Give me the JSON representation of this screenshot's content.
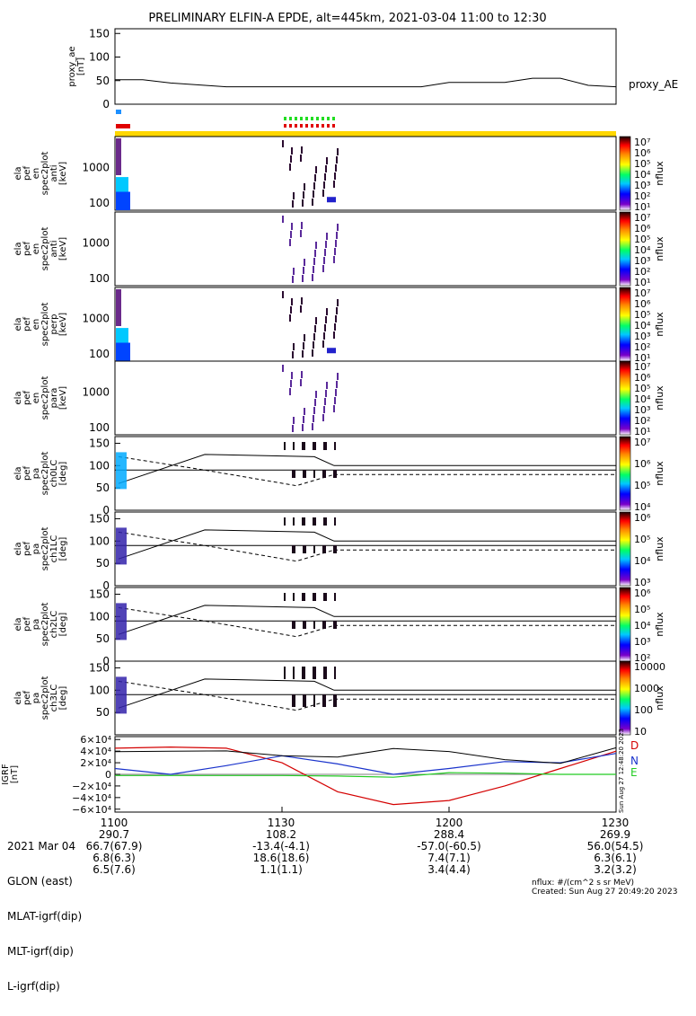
{
  "title": "PRELIMINARY ELFIN-A EPDE, alt=445km, 2021-03-04 11:00 to 12:30",
  "colors": {
    "frame": "#000000",
    "yellow_bar": "#ffd700",
    "blue_flag": "#1e90ff",
    "red_flag": "#e00000",
    "green_flag": "#22dd22",
    "igrf_D": "#d40000",
    "igrf_N": "#1a33cc",
    "igrf_E": "#22cc22"
  },
  "ae_panel": {
    "ylabel": "proxy_ae\n[nT]",
    "ticks": [
      "150",
      "100",
      "50",
      "0"
    ],
    "series_label": "proxy_AE"
  },
  "spec_panels": [
    {
      "ylabel": "ela\npef\nen\nspec2plot\nanti\n[keV]",
      "ticks": [
        "1000",
        "100"
      ],
      "cbar_label": "nflux",
      "cbar_ticks": [
        "10⁷",
        "10⁶",
        "10⁵",
        "10⁴",
        "10³",
        "10²",
        "10¹"
      ]
    },
    {
      "ylabel": "ela\npef\nen\nspec2plot\nanti\n[keV]",
      "ticks": [
        "1000",
        "100"
      ],
      "cbar_label": "nflux",
      "cbar_ticks": [
        "10⁷",
        "10⁶",
        "10⁵",
        "10⁴",
        "10³",
        "10²",
        "10¹"
      ]
    },
    {
      "ylabel": "ela\npef\nen\nspec2plot\nperp\n[keV]",
      "ticks": [
        "1000",
        "100"
      ],
      "cbar_label": "nflux",
      "cbar_ticks": [
        "10⁷",
        "10⁶",
        "10⁵",
        "10⁴",
        "10³",
        "10²",
        "10¹"
      ]
    },
    {
      "ylabel": "ela\npef\nen\nspec2plot\npara\n[keV]",
      "ticks": [
        "1000",
        "100"
      ],
      "cbar_label": "nflux",
      "cbar_ticks": [
        "10⁷",
        "10⁶",
        "10⁵",
        "10⁴",
        "10³",
        "10²",
        "10¹"
      ]
    }
  ],
  "pa_panels": [
    {
      "ylabel": "ela\npef\npa\nspec2plot\nch0LC\n[deg]",
      "ticks": [
        "150",
        "100",
        "50",
        "0"
      ],
      "cbar_label": "nflux",
      "cbar_ticks": [
        "10⁷",
        "10⁶",
        "10⁵",
        "10⁴"
      ]
    },
    {
      "ylabel": "ela\npef\npa\nspec2plot\nch1LC\n[deg]",
      "ticks": [
        "150",
        "100",
        "50",
        "0"
      ],
      "cbar_label": "nflux",
      "cbar_ticks": [
        "10⁶",
        "10⁵",
        "10⁴",
        "10³"
      ]
    },
    {
      "ylabel": "ela\npef\npa\nspec2plot\nch2LC\n[deg]",
      "ticks": [
        "150",
        "100",
        "50",
        "0"
      ],
      "cbar_label": "nflux",
      "cbar_ticks": [
        "10⁶",
        "10⁵",
        "10⁴",
        "10³",
        "10²"
      ]
    },
    {
      "ylabel": "ela\npef\npa\nspec2plot\nch3LC\n[deg]",
      "ticks": [
        "150",
        "100",
        "50"
      ],
      "cbar_label": "nflux",
      "cbar_ticks": [
        "10000",
        "1000",
        "100",
        "10"
      ]
    }
  ],
  "igrf_panel": {
    "ylabel": "IGRF\n[nT]",
    "ticks": [
      "6×10⁴",
      "4×10⁴",
      "2×10⁴",
      "0",
      "−2×10⁴",
      "−4×10⁴",
      "−6×10⁴"
    ],
    "labels": [
      "D",
      "N",
      "E"
    ],
    "side_text": "Sun Aug 27 12:48:20 2023"
  },
  "chart_data": {
    "type": "line",
    "x_ticks": [
      "1100",
      "1130",
      "1200",
      "1230"
    ],
    "proxy_ae": {
      "x": [
        0,
        5,
        10,
        20,
        30,
        40,
        50,
        55,
        60,
        70,
        75,
        80,
        85,
        90
      ],
      "y": [
        52,
        52,
        45,
        37,
        37,
        37,
        37,
        37,
        46,
        46,
        55,
        55,
        40,
        37
      ]
    },
    "igrf": {
      "D": {
        "x": [
          0,
          10,
          20,
          30,
          40,
          50,
          60,
          70,
          80,
          90
        ],
        "y": [
          45000,
          47000,
          45000,
          20000,
          -30000,
          -52000,
          -45000,
          -20000,
          10000,
          40000
        ]
      },
      "N": {
        "x": [
          0,
          10,
          20,
          30,
          40,
          50,
          60,
          70,
          80,
          90
        ],
        "y": [
          10000,
          0,
          15000,
          32000,
          18000,
          0,
          10000,
          22000,
          20000,
          36000
        ]
      },
      "E": {
        "x": [
          0,
          10,
          20,
          30,
          40,
          50,
          60,
          70,
          80,
          90
        ],
        "y": [
          -2000,
          -2000,
          -2000,
          -2000,
          -3000,
          -5000,
          3000,
          2000,
          0,
          0
        ]
      }
    }
  },
  "footer": {
    "rows": [
      "2021 Mar 04",
      "GLON (east)",
      "MLAT-igrf(dip)",
      "MLT-igrf(dip)",
      "L-igrf(dip)"
    ],
    "cols": [
      {
        "lines": [
          "1100",
          "290.7",
          "66.7(67.9)",
          "6.8(6.3)",
          "6.5(7.6)"
        ]
      },
      {
        "lines": [
          "1130",
          "108.2",
          "-13.4(-4.1)",
          "18.6(18.6)",
          "1.1(1.1)"
        ]
      },
      {
        "lines": [
          "1200",
          "288.4",
          "-57.0(-60.5)",
          "7.4(7.1)",
          "3.4(4.4)"
        ]
      },
      {
        "lines": [
          "1230",
          "269.9",
          "56.0(54.5)",
          "6.3(6.1)",
          "3.2(3.2)"
        ]
      }
    ],
    "units": "nflux: #/(cm^2 s sr MeV)",
    "created": "Created: Sun Aug 27 20:49:20 2023"
  }
}
